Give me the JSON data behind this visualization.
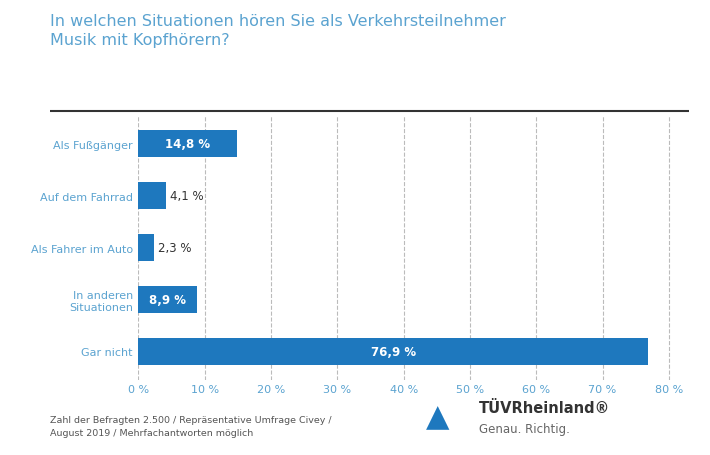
{
  "title_line1": "In welchen Situationen hören Sie als Verkehrsteilnehmer",
  "title_line2": "Musik mit Kopfhörern?",
  "categories": [
    "Als Fußgänger",
    "Auf dem Fahrrad",
    "Als Fahrer im Auto",
    "In anderen\nSituationen",
    "Gar nicht"
  ],
  "values": [
    14.8,
    4.1,
    2.3,
    8.9,
    76.9
  ],
  "bar_color": "#1e78be",
  "value_labels": [
    "14,8 %",
    "4,1 %",
    "2,3 %",
    "8,9 %",
    "76,9 %"
  ],
  "inside_threshold": 8.0,
  "xlim": [
    0,
    83
  ],
  "xticks": [
    0,
    10,
    20,
    30,
    40,
    50,
    60,
    70,
    80
  ],
  "xtick_labels": [
    "0 %",
    "10 %",
    "20 %",
    "30 %",
    "40 %",
    "50 %",
    "60 %",
    "70 %",
    "80 %"
  ],
  "background_color": "#ffffff",
  "title_color": "#5ba3d0",
  "label_color": "#5ba3d0",
  "value_text_color_inside": "#ffffff",
  "value_text_color_outside": "#333333",
  "grid_color": "#bbbbbb",
  "footnote": "Zahl der Befragten 2.500 / Repräsentative Umfrage Civey /\nAugust 2019 / Mehrfachantworten möglich",
  "tuv_text": "TÜVRheinland®",
  "tuv_subtext": "Genau. Richtig.",
  "separator_color": "#333333",
  "bar_height": 0.52,
  "label_fontsize": 8.0,
  "value_fontsize": 8.5,
  "title_fontsize": 11.5,
  "footnote_fontsize": 6.8,
  "tuv_text_fontsize": 10.5,
  "tuv_sub_fontsize": 8.5
}
